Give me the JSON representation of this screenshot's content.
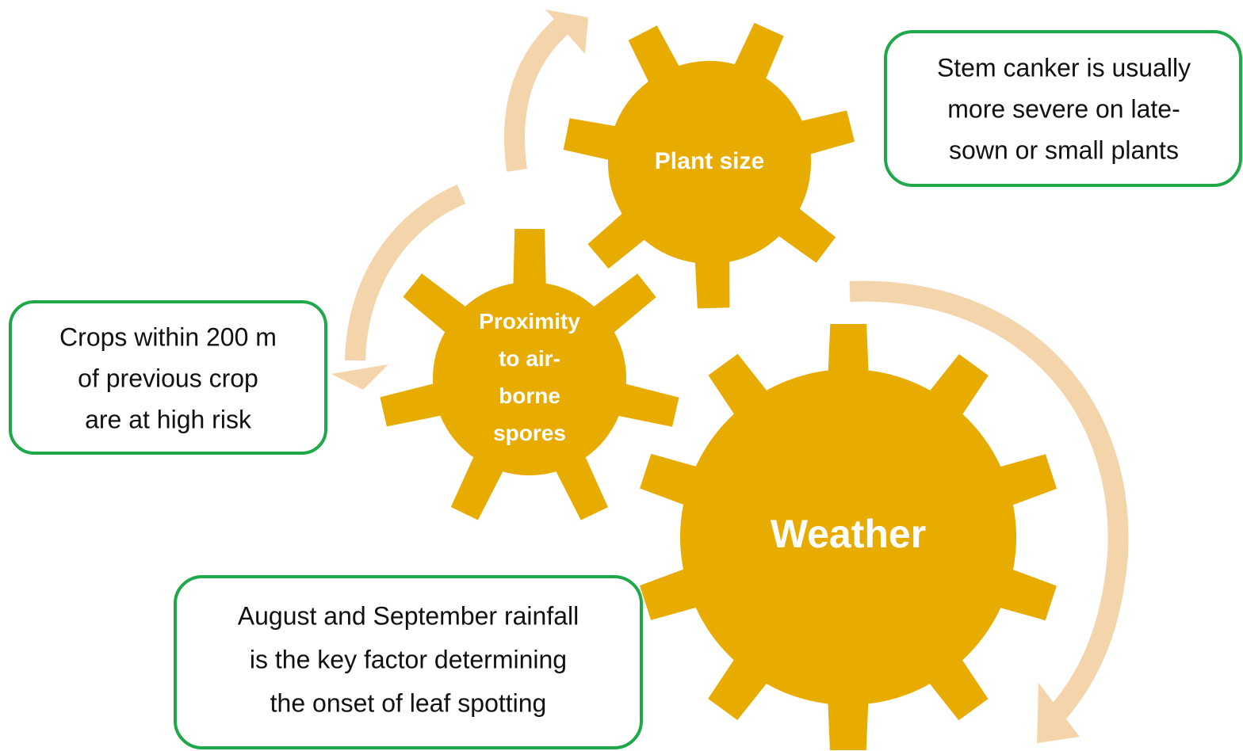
{
  "gears": [
    {
      "lines": [
        "Plant size"
      ]
    },
    {
      "lines": [
        "Proximity",
        "to air-",
        "borne",
        "spores"
      ]
    },
    {
      "lines": [
        "Weather"
      ]
    }
  ],
  "callouts": [
    {
      "lines": [
        "Stem canker is usually",
        "more severe on late-",
        "sown or small plants"
      ]
    },
    {
      "lines": [
        "Crops within 200 m",
        "of previous crop",
        "are at high risk"
      ]
    },
    {
      "lines": [
        "August and September rainfall",
        "is the key factor determining",
        "the onset of leaf spotting"
      ]
    }
  ]
}
